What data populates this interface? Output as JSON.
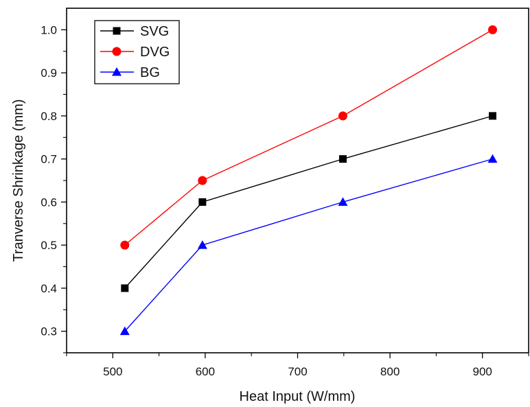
{
  "chart_data": {
    "type": "line",
    "title": "",
    "xlabel": "Heat Input (W/mm)",
    "ylabel": "Tranverse Shrinkage (mm)",
    "xlim": [
      450,
      950
    ],
    "ylim": [
      0.25,
      1.05
    ],
    "xticks": [
      500,
      600,
      700,
      800,
      900
    ],
    "xtick_labels": [
      "500",
      "600",
      "700",
      "800",
      "900"
    ],
    "yticks": [
      0.3,
      0.4,
      0.5,
      0.6,
      0.7,
      0.8,
      0.9,
      1.0
    ],
    "ytick_labels": [
      "0.3",
      "0.4",
      "0.5",
      "0.6",
      "0.7",
      "0.8",
      "0.9",
      "1.0"
    ],
    "grid": false,
    "legend_position": "top-left",
    "series": [
      {
        "name": "SVG",
        "color": "#000000",
        "marker": "square",
        "x": [
          513,
          597,
          749,
          911
        ],
        "y": [
          0.4,
          0.6,
          0.7,
          0.8
        ]
      },
      {
        "name": "DVG",
        "color": "#ff0000",
        "marker": "circle",
        "x": [
          513,
          597,
          749,
          911
        ],
        "y": [
          0.5,
          0.65,
          0.8,
          1.0
        ]
      },
      {
        "name": "BG",
        "color": "#0000ff",
        "marker": "triangle",
        "x": [
          513,
          597,
          749,
          911
        ],
        "y": [
          0.3,
          0.5,
          0.6,
          0.7
        ]
      }
    ]
  }
}
